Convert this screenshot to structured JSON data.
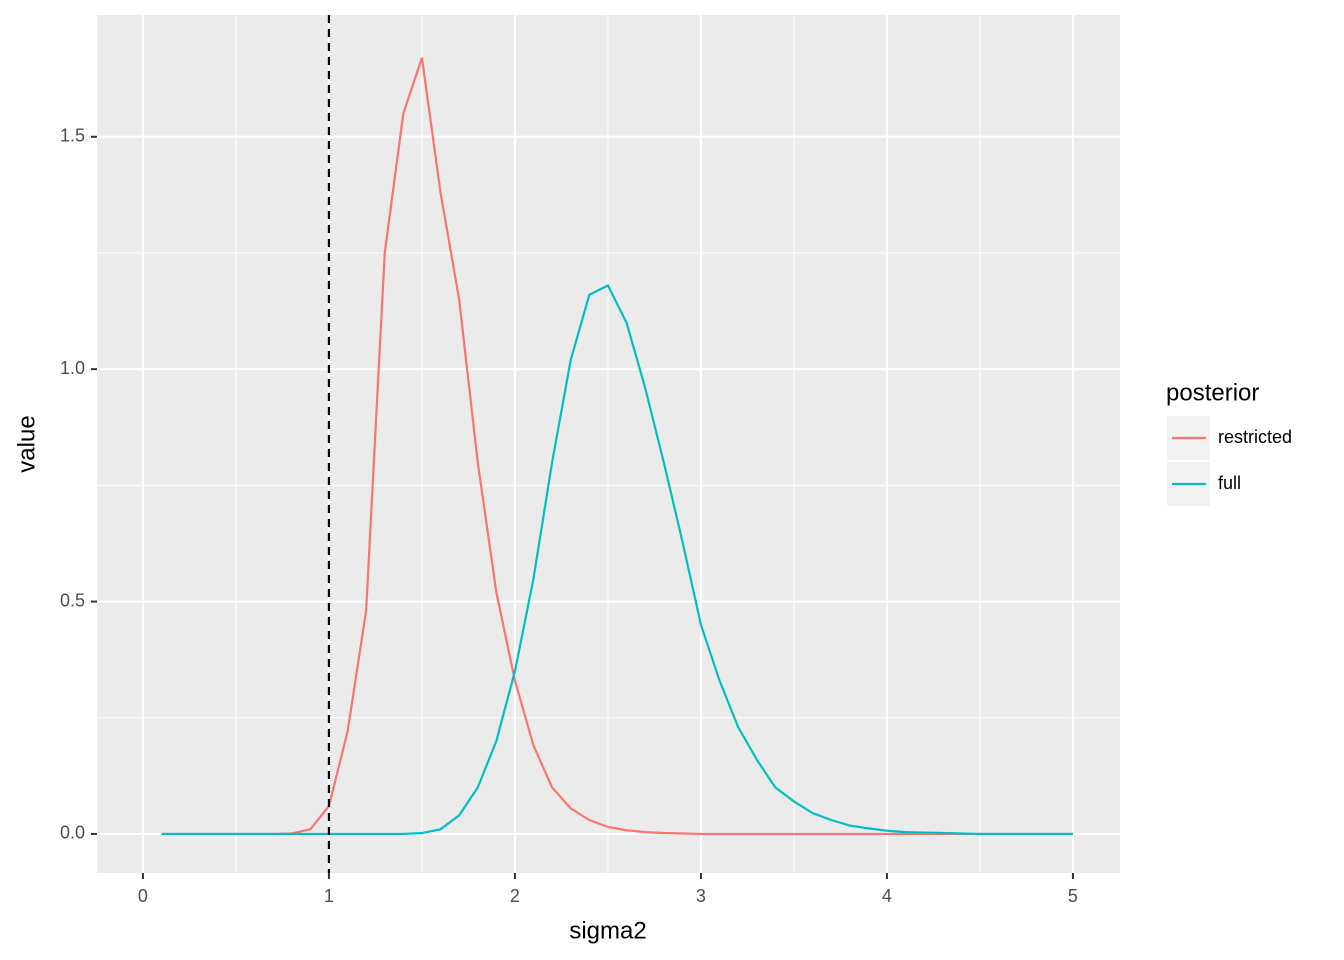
{
  "chart_data": {
    "type": "line",
    "x_label": "sigma2",
    "y_label": "value",
    "x": [
      0.1,
      0.2,
      0.3,
      0.4,
      0.5,
      0.6,
      0.7,
      0.8,
      0.9,
      1.0,
      1.1,
      1.2,
      1.3,
      1.4,
      1.5,
      1.6,
      1.7,
      1.8,
      1.9,
      2.0,
      2.1,
      2.2,
      2.3,
      2.4,
      2.5,
      2.6,
      2.7,
      2.8,
      2.9,
      3.0,
      3.1,
      3.2,
      3.3,
      3.4,
      3.5,
      3.6,
      3.7,
      3.8,
      3.9,
      4.0,
      4.1,
      4.2,
      4.3,
      4.4,
      4.5,
      4.6,
      4.7,
      4.8,
      4.9,
      5.0
    ],
    "series": [
      {
        "name": "restricted",
        "color": "#F8766D",
        "values": [
          0,
          0,
          0,
          0,
          0,
          0,
          0,
          0.001,
          0.01,
          0.06,
          0.22,
          0.48,
          1.25,
          1.55,
          1.67,
          1.38,
          1.15,
          0.8,
          0.52,
          0.33,
          0.19,
          0.1,
          0.055,
          0.03,
          0.015,
          0.008,
          0.004,
          0.002,
          0.001,
          0,
          0,
          0,
          0,
          0,
          0,
          0,
          0,
          0,
          0,
          0,
          0,
          0,
          0,
          0,
          0,
          0,
          0,
          0,
          0,
          0
        ]
      },
      {
        "name": "full",
        "color": "#00BFC4",
        "values": [
          0,
          0,
          0,
          0,
          0,
          0,
          0,
          0,
          0,
          0,
          0,
          0,
          0,
          0,
          0.002,
          0.01,
          0.04,
          0.1,
          0.2,
          0.35,
          0.55,
          0.8,
          1.02,
          1.16,
          1.18,
          1.1,
          0.96,
          0.8,
          0.63,
          0.45,
          0.33,
          0.23,
          0.16,
          0.1,
          0.07,
          0.045,
          0.03,
          0.018,
          0.012,
          0.007,
          0.004,
          0.003,
          0.002,
          0.001,
          0,
          0,
          0,
          0,
          0,
          0
        ]
      }
    ],
    "vline": 1,
    "xlim": [
      -0.247,
      5.253
    ],
    "xticks": [
      0,
      1,
      2,
      3,
      4,
      5
    ],
    "ylim": [
      -0.084,
      1.762
    ],
    "yticks": [
      {
        "value": 0,
        "label": "0.0"
      },
      0.5,
      {
        "value": 1,
        "label": "1.0"
      },
      1.5
    ],
    "grid": true,
    "legend": {
      "title": "posterior",
      "position": "right"
    }
  }
}
